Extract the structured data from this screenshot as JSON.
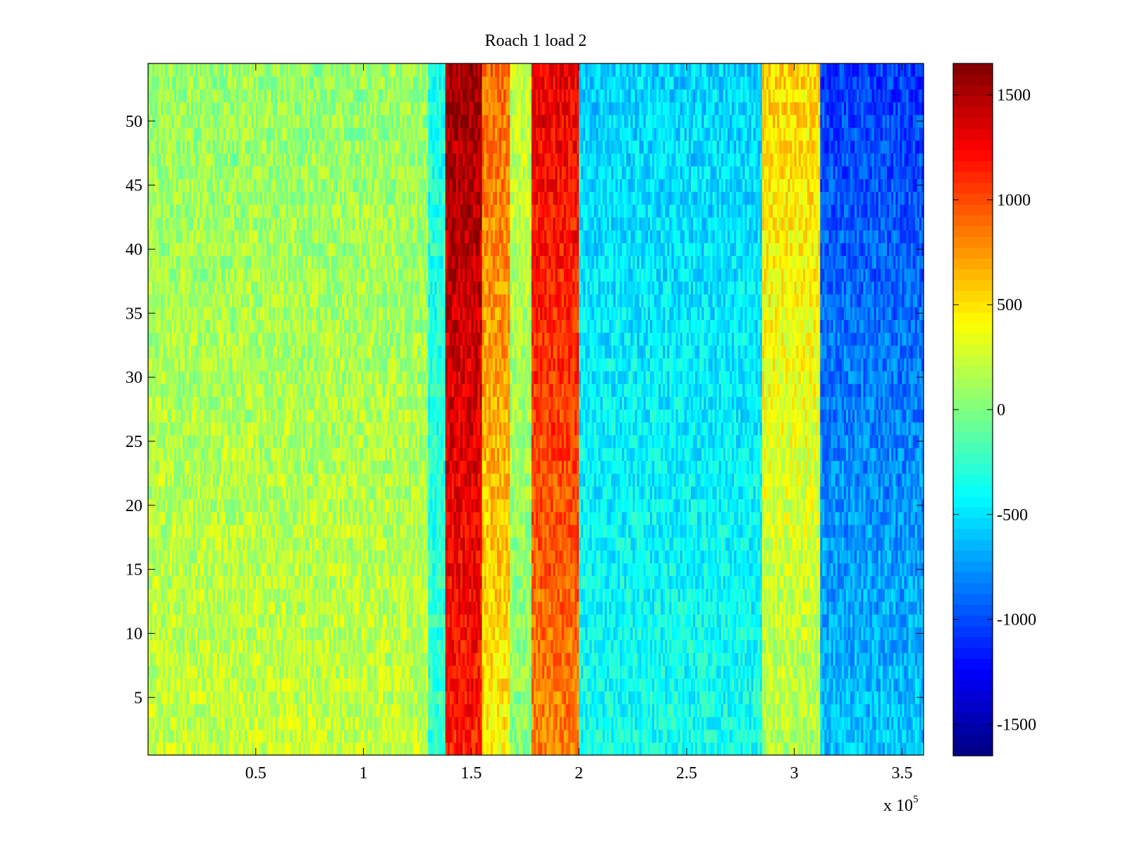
{
  "chart_data": {
    "type": "heatmap",
    "title": "Roach 1 load 2",
    "xlabel": "",
    "ylabel": "",
    "x_multiplier_label": "x 10",
    "x_multiplier_exponent": "5",
    "xlim": [
      0,
      3.6
    ],
    "ylim": [
      0.5,
      54.5
    ],
    "x_ticks": [
      0.5,
      1,
      1.5,
      2,
      2.5,
      3,
      3.5
    ],
    "x_tick_labels": [
      "0.5",
      "1",
      "1.5",
      "2",
      "2.5",
      "3",
      "3.5"
    ],
    "y_ticks": [
      5,
      10,
      15,
      20,
      25,
      30,
      35,
      40,
      45,
      50
    ],
    "y_tick_labels": [
      "5",
      "10",
      "15",
      "20",
      "25",
      "30",
      "35",
      "40",
      "45",
      "50"
    ],
    "colorbar": {
      "colormap": "jet",
      "range": [
        -1650,
        1650
      ],
      "ticks": [
        1500,
        1000,
        500,
        0,
        -500,
        -1000,
        -1500
      ],
      "tick_labels": [
        "1500",
        "1000",
        "500",
        "0",
        "-500",
        "-1000",
        "-1500"
      ]
    },
    "rows": 54,
    "columns": 360,
    "x_unit_multiplier": 100000,
    "bands": [
      {
        "x_start": 0.0,
        "x_end": 1.3,
        "value_low_rows": 220,
        "value_high_rows": 80
      },
      {
        "x_start": 1.3,
        "x_end": 1.38,
        "value_low_rows": -250,
        "value_high_rows": -350
      },
      {
        "x_start": 1.38,
        "x_end": 1.55,
        "value_low_rows": 1150,
        "value_high_rows": 1550
      },
      {
        "x_start": 1.55,
        "x_end": 1.68,
        "value_low_rows": 450,
        "value_high_rows": 900
      },
      {
        "x_start": 1.68,
        "x_end": 1.78,
        "value_low_rows": 0,
        "value_high_rows": 250
      },
      {
        "x_start": 1.78,
        "x_end": 2.0,
        "value_low_rows": 800,
        "value_high_rows": 1300
      },
      {
        "x_start": 2.0,
        "x_end": 2.85,
        "value_low_rows": -350,
        "value_high_rows": -550
      },
      {
        "x_start": 2.85,
        "x_end": 3.12,
        "value_low_rows": 150,
        "value_high_rows": 550
      },
      {
        "x_start": 3.12,
        "x_end": 3.6,
        "value_low_rows": -600,
        "value_high_rows": -1050
      }
    ]
  }
}
